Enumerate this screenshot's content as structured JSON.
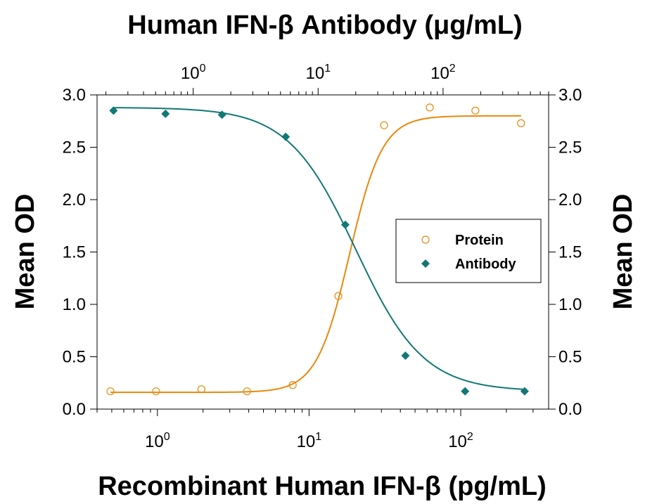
{
  "chart_data": {
    "type": "scatter",
    "title_top": "Human IFN-β Antibody (μg/mL)",
    "xlabel": "Recombinant Human IFN-β (pg/mL)",
    "ylabel_left": "Mean OD",
    "ylabel_right": "Mean OD",
    "x_bottom": {
      "scale": "log",
      "range": [
        0.4,
        380
      ],
      "ticks": [
        1,
        10,
        100
      ],
      "tick_labels": [
        [
          "10",
          "0"
        ],
        [
          "10",
          "1"
        ],
        [
          "10",
          "2"
        ]
      ]
    },
    "x_top": {
      "scale": "log",
      "range": [
        0.17,
        700
      ],
      "ticks": [
        1,
        10,
        100
      ],
      "tick_labels": [
        [
          "10",
          "0"
        ],
        [
          "10",
          "1"
        ],
        [
          "10",
          "2"
        ]
      ]
    },
    "y": {
      "range": [
        0,
        3.0
      ],
      "ticks": [
        0.0,
        0.5,
        1.0,
        1.5,
        2.0,
        2.5,
        3.0
      ],
      "tick_labels": [
        "0.0",
        "0.5",
        "1.0",
        "1.5",
        "2.0",
        "2.5",
        "3.0"
      ]
    },
    "grid": false,
    "legend_position": "right",
    "series": [
      {
        "name": "Protein",
        "axis": "bottom",
        "marker": "open-circle",
        "color": "#E8890C",
        "x": [
          0.49,
          0.98,
          1.95,
          3.9,
          7.8,
          15.6,
          31.25,
          62.5,
          125,
          250
        ],
        "y": [
          0.17,
          0.17,
          0.19,
          0.17,
          0.23,
          1.08,
          2.71,
          2.88,
          2.85,
          2.73
        ],
        "fit": {
          "bottom": 0.16,
          "top": 2.8,
          "ec50": 18.5,
          "hill": 4.0
        }
      },
      {
        "name": "Antibody",
        "axis": "top",
        "marker": "filled-diamond",
        "color": "#127873",
        "x": [
          0.23,
          0.6,
          1.7,
          5.5,
          16.5,
          50,
          150,
          450
        ],
        "y": [
          2.85,
          2.82,
          2.81,
          2.6,
          1.76,
          0.51,
          0.17,
          0.17
        ],
        "fit": {
          "top": 2.88,
          "bottom": 0.17,
          "ec50": 20.0,
          "hill": 1.6
        }
      }
    ]
  }
}
